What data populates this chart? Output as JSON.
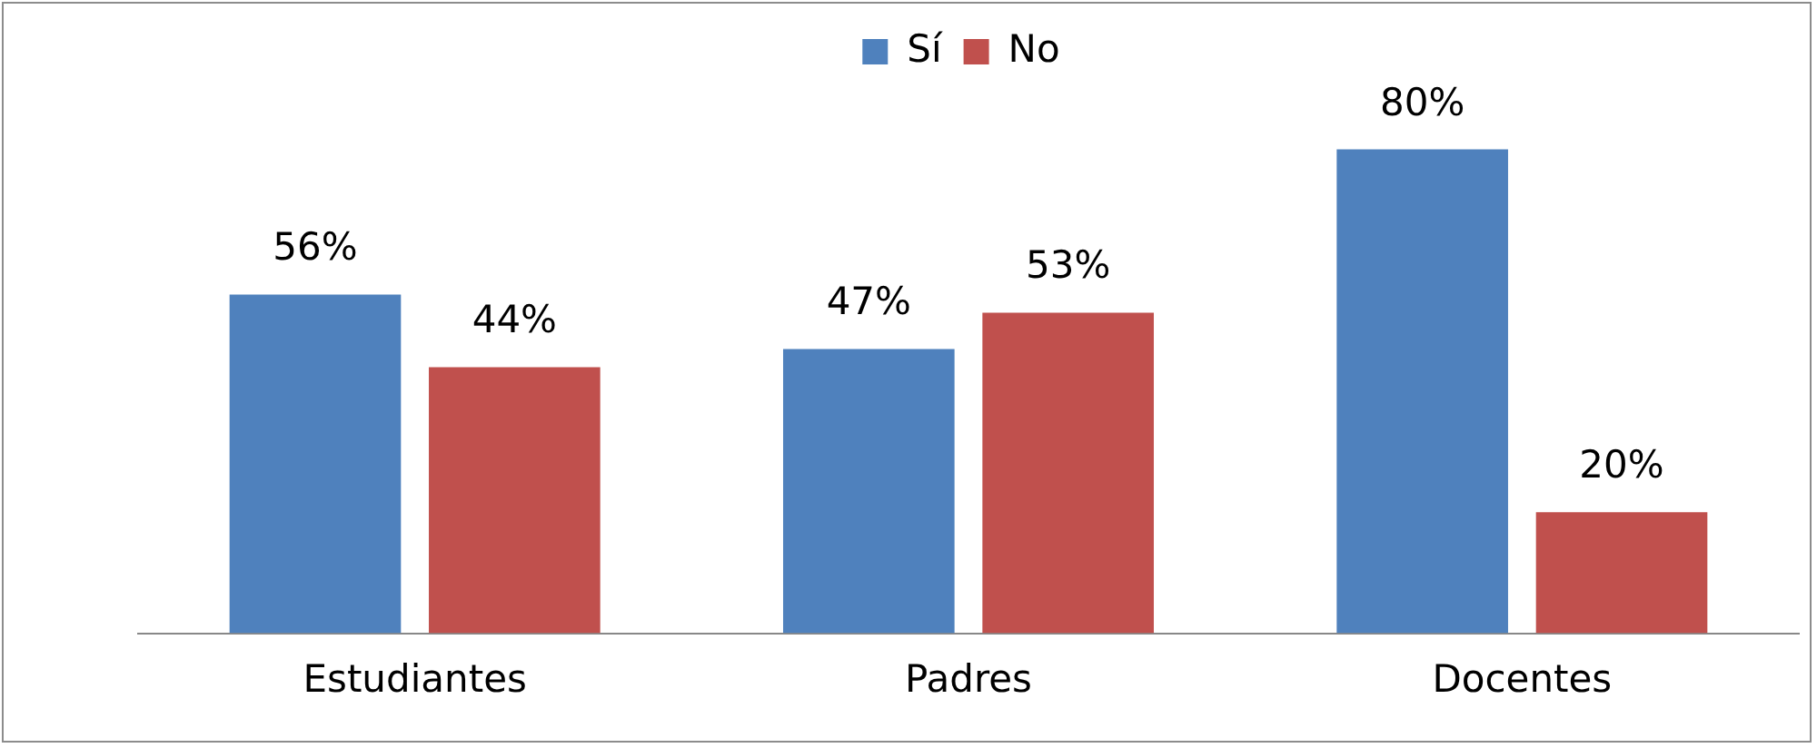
{
  "chart_data": {
    "type": "bar",
    "categories": [
      "Estudiantes",
      "Padres",
      "Docentes"
    ],
    "series": [
      {
        "name": "Sí",
        "color": "#4f81bd",
        "values": [
          56,
          47,
          80
        ],
        "value_labels": [
          "56%",
          "47%",
          "80%"
        ]
      },
      {
        "name": "No",
        "color": "#c0504d",
        "values": [
          44,
          53,
          20
        ],
        "value_labels": [
          "44%",
          "53%",
          "20%"
        ]
      }
    ],
    "legend": "top",
    "grid": false,
    "tick_labels": "x"
  }
}
